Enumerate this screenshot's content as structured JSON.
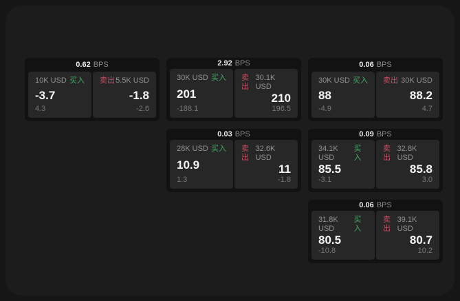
{
  "labels": {
    "buy": "买入",
    "sell": "卖出",
    "bps": "BPS"
  },
  "colors": {
    "buy_green": "#48a868",
    "sell_red": "#c24f63",
    "page_bg": "#161616",
    "window_bg": "#1c1c1c",
    "card_bg": "#121212",
    "panel_bg": "#272727"
  },
  "cards": [
    {
      "col": 1,
      "row": 1,
      "bps": "0.62",
      "buy": {
        "amount": "10K USD",
        "value": "-3.7",
        "sub": "4.3"
      },
      "sell": {
        "amount": "5.5K USD",
        "value": "-1.8",
        "sub": "-2.6"
      }
    },
    {
      "col": 2,
      "row": 1,
      "bps": "2.92",
      "buy": {
        "amount": "30K USD",
        "value": "201",
        "sub": "-188.1"
      },
      "sell": {
        "amount": "30.1K USD",
        "value": "210",
        "sub": "196.5"
      }
    },
    {
      "col": 3,
      "row": 1,
      "bps": "0.06",
      "buy": {
        "amount": "30K USD",
        "value": "88",
        "sub": "-4.9"
      },
      "sell": {
        "amount": "30K USD",
        "value": "88.2",
        "sub": "4.7"
      }
    },
    {
      "col": 2,
      "row": 2,
      "bps": "0.03",
      "buy": {
        "amount": "28K USD",
        "value": "10.9",
        "sub": "1.3"
      },
      "sell": {
        "amount": "32.6K USD",
        "value": "11",
        "sub": "-1.8"
      }
    },
    {
      "col": 3,
      "row": 2,
      "bps": "0.09",
      "buy": {
        "amount": "34.1K USD",
        "value": "85.5",
        "sub": "-3.1"
      },
      "sell": {
        "amount": "32.8K USD",
        "value": "85.8",
        "sub": "3.0"
      }
    },
    {
      "col": 3,
      "row": 3,
      "bps": "0.06",
      "buy": {
        "amount": "31.8K USD",
        "value": "80.5",
        "sub": "-10.8"
      },
      "sell": {
        "amount": "39.1K USD",
        "value": "80.7",
        "sub": "10.2"
      }
    }
  ]
}
